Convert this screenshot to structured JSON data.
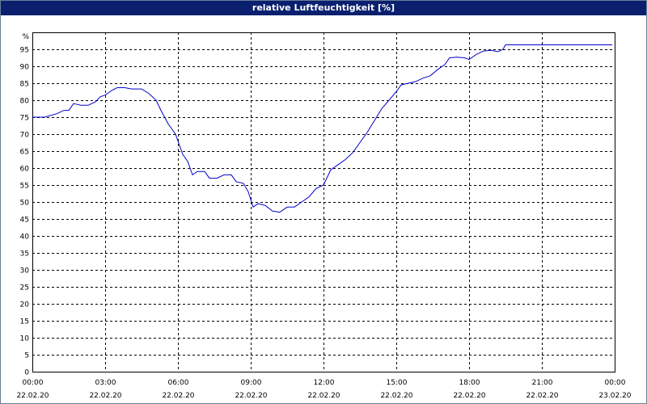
{
  "window": {
    "title": "relative Luftfeuchtigkeit [%]"
  },
  "colors": {
    "titlebar": "#0a1f6e",
    "line": "#0000cc",
    "grid": "#000000"
  },
  "chart_data": {
    "type": "line",
    "title": "relative Luftfeuchtigkeit [%]",
    "ylabel": "%",
    "xlabel": "",
    "ylim": [
      0,
      100
    ],
    "yticks": [
      0,
      5,
      10,
      15,
      20,
      25,
      30,
      35,
      40,
      45,
      50,
      55,
      60,
      65,
      70,
      75,
      80,
      85,
      90,
      95
    ],
    "ytick_labels": [
      "0",
      "5",
      "10",
      "15",
      "20",
      "25",
      "30",
      "35",
      "40",
      "45",
      "50",
      "55",
      "60",
      "65",
      "70",
      "75",
      "80",
      "85",
      "90",
      "95"
    ],
    "xlim_hours": [
      0,
      24
    ],
    "xticks": [
      {
        "hour": 0,
        "time": "00:00",
        "date": "22.02.20"
      },
      {
        "hour": 3,
        "time": "03:00",
        "date": "22.02.20"
      },
      {
        "hour": 6,
        "time": "06:00",
        "date": "22.02.20"
      },
      {
        "hour": 9,
        "time": "09:00",
        "date": "22.02.20"
      },
      {
        "hour": 12,
        "time": "12:00",
        "date": "22.02.20"
      },
      {
        "hour": 15,
        "time": "15:00",
        "date": "22.02.20"
      },
      {
        "hour": 18,
        "time": "18:00",
        "date": "22.02.20"
      },
      {
        "hour": 21,
        "time": "21:00",
        "date": "22.02.20"
      },
      {
        "hour": 24,
        "time": "00:00",
        "date": "23.02.20"
      }
    ],
    "grid": true,
    "series": [
      {
        "points": [
          [
            0,
            75
          ],
          [
            0.5,
            75
          ],
          [
            1.0,
            76
          ],
          [
            1.3,
            77
          ],
          [
            1.5,
            77
          ],
          [
            1.7,
            79
          ],
          [
            2.0,
            78.5
          ],
          [
            2.3,
            78.5
          ],
          [
            2.6,
            79.5
          ],
          [
            2.8,
            81
          ],
          [
            3.0,
            81.5
          ],
          [
            3.3,
            83
          ],
          [
            3.5,
            83.7
          ],
          [
            3.8,
            83.7
          ],
          [
            4.1,
            83.3
          ],
          [
            4.5,
            83.3
          ],
          [
            4.8,
            82
          ],
          [
            5.1,
            80
          ],
          [
            5.3,
            77
          ],
          [
            5.6,
            73
          ],
          [
            5.9,
            70
          ],
          [
            6.2,
            64
          ],
          [
            6.4,
            62
          ],
          [
            6.6,
            58
          ],
          [
            6.8,
            59
          ],
          [
            7.1,
            59
          ],
          [
            7.3,
            57
          ],
          [
            7.6,
            57
          ],
          [
            7.9,
            58
          ],
          [
            8.2,
            58
          ],
          [
            8.4,
            56
          ],
          [
            8.7,
            55.5
          ],
          [
            8.9,
            53
          ],
          [
            9.1,
            48.5
          ],
          [
            9.3,
            49.5
          ],
          [
            9.6,
            49
          ],
          [
            9.9,
            47.3
          ],
          [
            10.2,
            47
          ],
          [
            10.5,
            48.5
          ],
          [
            10.8,
            48.5
          ],
          [
            11.1,
            50
          ],
          [
            11.4,
            51.5
          ],
          [
            11.7,
            54
          ],
          [
            12.0,
            55
          ],
          [
            12.3,
            59.5
          ],
          [
            12.6,
            61
          ],
          [
            12.9,
            62.5
          ],
          [
            13.2,
            64.5
          ],
          [
            13.5,
            67.5
          ],
          [
            13.8,
            70.5
          ],
          [
            14.1,
            74
          ],
          [
            14.4,
            77.5
          ],
          [
            14.7,
            80
          ],
          [
            15.0,
            82.5
          ],
          [
            15.2,
            84.5
          ],
          [
            15.5,
            85
          ],
          [
            15.8,
            85.5
          ],
          [
            16.1,
            86.5
          ],
          [
            16.4,
            87.2
          ],
          [
            16.7,
            89
          ],
          [
            17.0,
            90.5
          ],
          [
            17.2,
            92.5
          ],
          [
            17.5,
            92.7
          ],
          [
            17.8,
            92.5
          ],
          [
            18.0,
            92
          ],
          [
            18.3,
            93.5
          ],
          [
            18.6,
            94.5
          ],
          [
            18.9,
            94.7
          ],
          [
            19.2,
            94.3
          ],
          [
            19.4,
            95
          ],
          [
            19.5,
            96.3
          ],
          [
            20.0,
            96.3
          ],
          [
            22.0,
            96.3
          ],
          [
            23.9,
            96.3
          ]
        ]
      }
    ]
  }
}
